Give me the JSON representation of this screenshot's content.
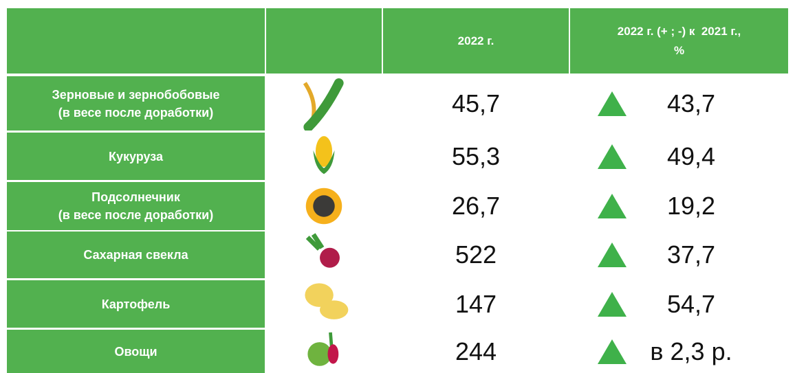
{
  "header": {
    "year": "2022 г.",
    "change": [
      "2022 г. (+ ; -) к  2021 г.,",
      "%"
    ]
  },
  "rows": [
    {
      "name": [
        "Зерновые и зернобобовые",
        "(в весе после доработки)"
      ],
      "value": "45,7",
      "change": "43,7"
    },
    {
      "name": [
        "Кукуруза"
      ],
      "value": "55,3",
      "change": "49,4"
    },
    {
      "name": [
        "Подсолнечник",
        "(в весе после доработки)"
      ],
      "value": "26,7",
      "change": "19,2"
    },
    {
      "name": [
        "Сахарная свекла"
      ],
      "value": "522",
      "change": "37,7"
    },
    {
      "name": [
        "Картофель"
      ],
      "value": "147",
      "change": "54,7"
    },
    {
      "name": [
        "Овощи"
      ],
      "value": "244",
      "change": "в 2,3 р."
    }
  ]
}
